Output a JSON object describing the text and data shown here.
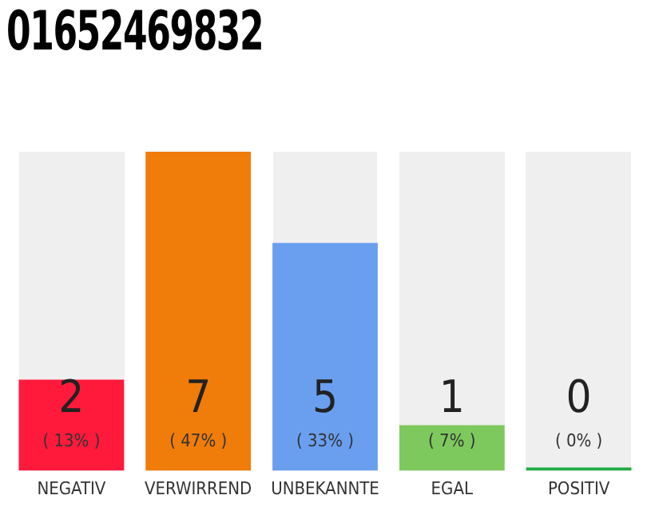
{
  "chart_data": {
    "type": "bar",
    "title": "01652469832",
    "categories": [
      "NEGATIV",
      "VERWIRREND",
      "UNBEKANNTE",
      "EGAL",
      "POSITIV"
    ],
    "values": [
      2,
      7,
      5,
      1,
      0
    ],
    "colors": [
      "#ff1a3c",
      "#f07c0a",
      "#6a9ff0",
      "#7dc95e",
      "#22aa44"
    ],
    "value_labels": [
      "2\n( 13% )",
      "7\n( 47% )",
      "5\n( 33% )",
      "1\n( 7% )",
      "0\n( 0% )"
    ],
    "grid": false,
    "legend": false
  }
}
